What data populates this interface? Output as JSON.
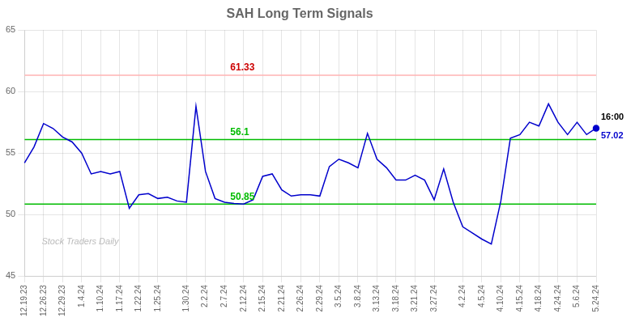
{
  "chart_data": {
    "type": "line",
    "title": "SAH Long Term Signals",
    "categories": [
      "12.19.23",
      null,
      "12.26.23",
      null,
      "12.29.23",
      null,
      "1.4.24",
      null,
      "1.10.24",
      null,
      "1.17.24",
      null,
      "1.22.24",
      null,
      "1.25.24",
      null,
      null,
      "1.30.24",
      null,
      "2.2.24",
      null,
      "2.7.24",
      null,
      "2.12.24",
      null,
      "2.15.24",
      null,
      "2.21.24",
      null,
      "2.26.24",
      null,
      "2.29.24",
      null,
      "3.5.24",
      null,
      "3.8.24",
      null,
      "3.13.24",
      null,
      "3.18.24",
      null,
      "3.21.24",
      null,
      "3.27.24",
      null,
      null,
      "4.2.24",
      null,
      "4.5.24",
      null,
      "4.10.24",
      null,
      "4.15.24",
      null,
      "4.18.24",
      null,
      "4.24.24",
      null,
      "5.6.24",
      null,
      "5.24.24"
    ],
    "values": [
      54.2,
      55.5,
      57.4,
      57.0,
      56.3,
      55.9,
      55.0,
      53.3,
      53.5,
      53.3,
      53.5,
      50.5,
      51.6,
      51.7,
      51.3,
      51.4,
      51.1,
      51.0,
      58.8,
      53.5,
      51.3,
      51.0,
      50.9,
      50.85,
      51.2,
      53.1,
      53.3,
      52.0,
      51.5,
      51.6,
      51.6,
      51.5,
      53.9,
      54.5,
      54.2,
      53.8,
      56.6,
      54.5,
      53.8,
      52.8,
      52.8,
      53.2,
      52.8,
      51.2,
      53.7,
      51.0,
      49.0,
      48.5,
      48.0,
      47.6,
      51.1,
      56.2,
      56.5,
      57.5,
      57.2,
      59.0,
      57.5,
      56.5,
      57.5,
      56.5,
      57.02
    ],
    "color": "#0000cc",
    "ylim": [
      45,
      65
    ],
    "yticks": [
      45,
      50,
      55,
      60,
      65
    ],
    "grid": true,
    "hlines": [
      {
        "value": 61.33,
        "color": "#ffb3b3",
        "label": "61.33",
        "label_color": "#cc0000"
      },
      {
        "value": 56.1,
        "color": "#00bb00",
        "label": "56.1",
        "label_color": "#00bb00"
      },
      {
        "value": 50.85,
        "color": "#00bb00",
        "label": "50.85",
        "label_color": "#00bb00"
      }
    ],
    "last_point_labels": [
      {
        "text": "16:00",
        "color": "#000000"
      },
      {
        "text": "57.02",
        "color": "#0000cc"
      }
    ],
    "watermark": {
      "text": "Stock Traders Daily",
      "color": "#bbbbbb"
    }
  }
}
